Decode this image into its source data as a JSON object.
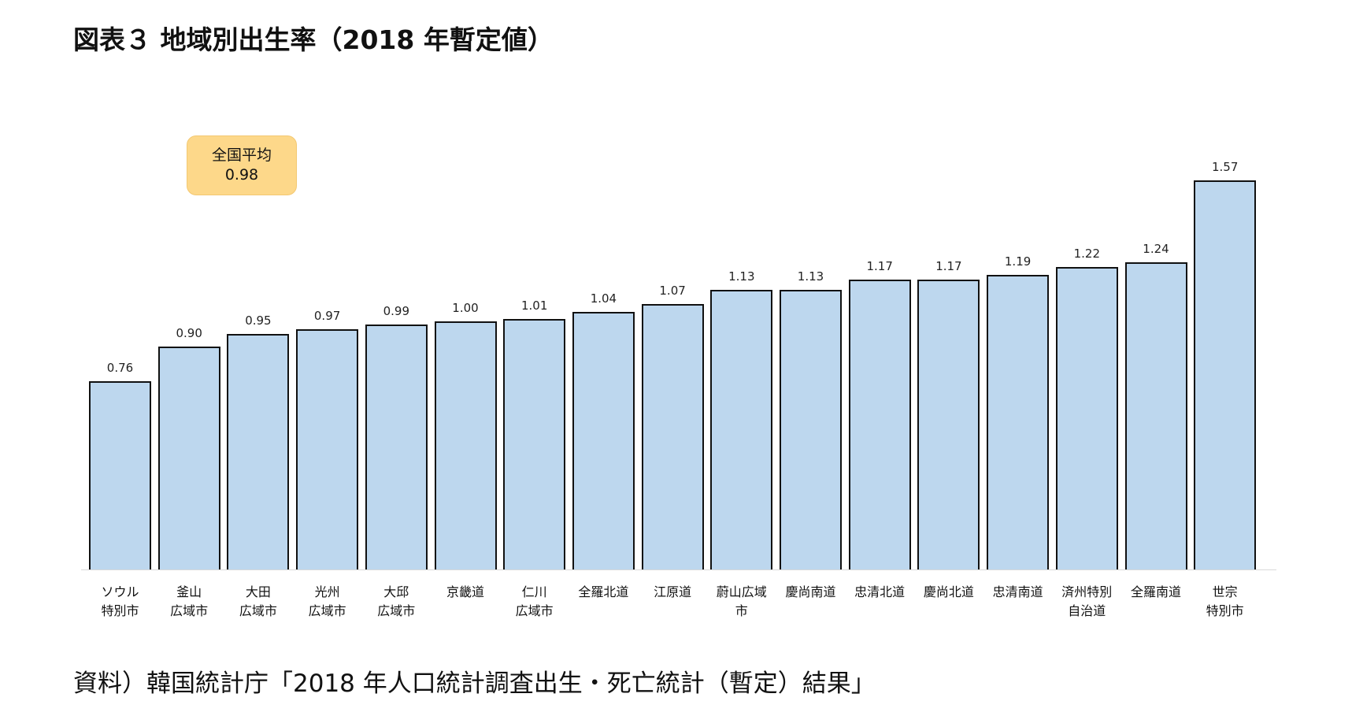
{
  "title": "図表３ 地域別出生率（2018 年暫定値）",
  "average_box": {
    "label": "全国平均",
    "value": "0.98",
    "color": "#fdd88a"
  },
  "source": "資料）韓国統計庁「2018 年人口統計調査出生・死亡統計（暫定）結果」",
  "chart_data": {
    "type": "bar",
    "title": "図表３ 地域別出生率（2018 年暫定値）",
    "xlabel": "",
    "ylabel": "",
    "ylim": [
      0,
      1.6
    ],
    "grid": false,
    "legend": null,
    "bar_color": "#bdd7ee",
    "categories": [
      "ソウル特別市",
      "釜山広域市",
      "大田広域市",
      "光州広域市",
      "大邱広域市",
      "京畿道",
      "仁川広域市",
      "全羅北道",
      "江原道",
      "蔚山広域市",
      "慶尚南道",
      "忠清北道",
      "慶尚北道",
      "忠清南道",
      "済州特別自治道",
      "全羅南道",
      "世宗特別市"
    ],
    "category_lines": [
      [
        "ソウル",
        "特別市"
      ],
      [
        "釜山",
        "広域市"
      ],
      [
        "大田",
        "広域市"
      ],
      [
        "光州",
        "広域市"
      ],
      [
        "大邱",
        "広域市"
      ],
      [
        "京畿道",
        ""
      ],
      [
        "仁川",
        "広域市"
      ],
      [
        "全羅北道",
        ""
      ],
      [
        "江原道",
        ""
      ],
      [
        "蔚山広域",
        "市"
      ],
      [
        "慶尚南道",
        ""
      ],
      [
        "忠清北道",
        ""
      ],
      [
        "慶尚北道",
        ""
      ],
      [
        "忠清南道",
        ""
      ],
      [
        "済州特別",
        "自治道"
      ],
      [
        "全羅南道",
        ""
      ],
      [
        "世宗",
        "特別市"
      ]
    ],
    "values": [
      0.76,
      0.9,
      0.95,
      0.97,
      0.99,
      1.0,
      1.01,
      1.04,
      1.07,
      1.13,
      1.13,
      1.17,
      1.17,
      1.19,
      1.22,
      1.24,
      1.57
    ],
    "value_labels": [
      "0.76",
      "0.90",
      "0.95",
      "0.97",
      "0.99",
      "1.00",
      "1.01",
      "1.04",
      "1.07",
      "1.13",
      "1.13",
      "1.17",
      "1.17",
      "1.19",
      "1.22",
      "1.24",
      "1.57"
    ],
    "annotations": [
      {
        "text": "全国平均 0.98",
        "value": 0.98
      }
    ]
  }
}
